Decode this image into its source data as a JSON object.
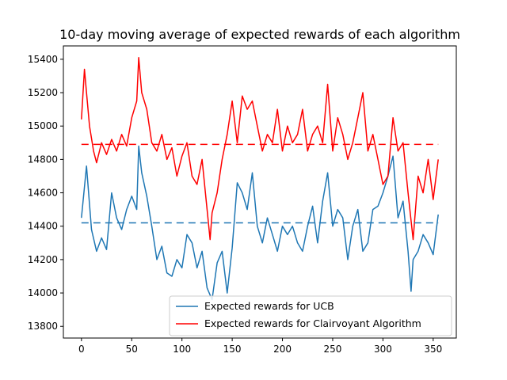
{
  "chart_data": {
    "type": "line",
    "title": "10-day moving average of expected rewards of each algorithm",
    "xlabel": "",
    "ylabel": "",
    "xlim": [
      -18,
      373
    ],
    "ylim": [
      13730,
      15480
    ],
    "xticks": [
      0,
      50,
      100,
      150,
      200,
      250,
      300,
      350
    ],
    "yticks": [
      13800,
      14000,
      14200,
      14400,
      14600,
      14800,
      15000,
      15200,
      15400
    ],
    "grid": false,
    "legend_position": "lower-right",
    "series": [
      {
        "name": "Expected rewards for UCB",
        "color": "#1f77b4",
        "style": "solid",
        "x": [
          0,
          5,
          10,
          15,
          20,
          25,
          30,
          35,
          40,
          45,
          50,
          55,
          57,
          60,
          65,
          70,
          75,
          80,
          85,
          90,
          95,
          100,
          105,
          110,
          115,
          120,
          125,
          130,
          135,
          140,
          145,
          150,
          155,
          160,
          165,
          170,
          175,
          180,
          185,
          190,
          195,
          200,
          205,
          210,
          215,
          220,
          225,
          230,
          235,
          240,
          245,
          250,
          255,
          260,
          265,
          270,
          275,
          280,
          285,
          290,
          295,
          300,
          305,
          310,
          315,
          320,
          325,
          328,
          330,
          335,
          340,
          345,
          350,
          355
        ],
        "values": [
          14450,
          14760,
          14380,
          14250,
          14330,
          14260,
          14600,
          14450,
          14380,
          14500,
          14580,
          14500,
          14880,
          14720,
          14580,
          14400,
          14200,
          14280,
          14120,
          14100,
          14200,
          14150,
          14350,
          14300,
          14150,
          14250,
          14030,
          13960,
          14180,
          14250,
          14000,
          14270,
          14660,
          14600,
          14500,
          14720,
          14400,
          14300,
          14450,
          14350,
          14250,
          14400,
          14350,
          14400,
          14300,
          14250,
          14400,
          14520,
          14300,
          14550,
          14720,
          14400,
          14500,
          14450,
          14200,
          14400,
          14500,
          14250,
          14300,
          14500,
          14520,
          14600,
          14700,
          14820,
          14450,
          14550,
          14250,
          14010,
          14200,
          14250,
          14350,
          14300,
          14230,
          14470
        ]
      },
      {
        "name": "Expected rewards for Clairvoyant Algorithm",
        "color": "#ff0000",
        "style": "solid",
        "x": [
          0,
          3,
          5,
          8,
          12,
          15,
          20,
          25,
          30,
          35,
          40,
          45,
          50,
          55,
          57,
          60,
          65,
          70,
          75,
          80,
          85,
          90,
          95,
          100,
          105,
          110,
          115,
          120,
          125,
          128,
          130,
          135,
          140,
          145,
          150,
          155,
          160,
          165,
          170,
          175,
          180,
          185,
          190,
          195,
          200,
          205,
          210,
          215,
          220,
          225,
          230,
          235,
          240,
          245,
          250,
          255,
          260,
          265,
          270,
          275,
          280,
          285,
          290,
          295,
          300,
          305,
          310,
          315,
          320,
          325,
          330,
          335,
          340,
          345,
          350,
          355
        ],
        "values": [
          15040,
          15340,
          15200,
          15000,
          14850,
          14780,
          14900,
          14830,
          14920,
          14850,
          14950,
          14880,
          15050,
          15150,
          15410,
          15200,
          15100,
          14900,
          14850,
          14950,
          14800,
          14870,
          14700,
          14820,
          14900,
          14700,
          14650,
          14800,
          14500,
          14320,
          14480,
          14600,
          14800,
          14950,
          15150,
          14900,
          15180,
          15100,
          15150,
          15000,
          14850,
          14950,
          14900,
          15100,
          14850,
          15000,
          14900,
          14950,
          15100,
          14850,
          14950,
          15000,
          14900,
          15250,
          14850,
          15050,
          14950,
          14800,
          14900,
          15050,
          15200,
          14850,
          14950,
          14800,
          14650,
          14700,
          15050,
          14850,
          14900,
          14600,
          14320,
          14700,
          14600,
          14800,
          14560,
          14800
        ]
      },
      {
        "name": "",
        "color": "#1f77b4",
        "style": "dashed",
        "x": [
          0,
          355
        ],
        "values": [
          14420,
          14420
        ]
      },
      {
        "name": "",
        "color": "#ff0000",
        "style": "dashed",
        "x": [
          0,
          355
        ],
        "values": [
          14890,
          14890
        ]
      }
    ]
  }
}
